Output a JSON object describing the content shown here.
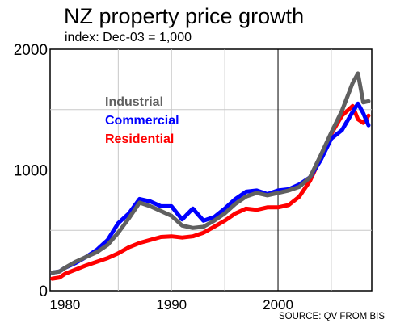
{
  "chart_data": {
    "type": "line",
    "title": "NZ property price growth",
    "subtitle": "index: Dec-03 = 1,000",
    "source": "SOURCE: QV FROM BIS",
    "xlabel": "",
    "ylabel": "",
    "xlim": [
      1978.6,
      2008.8
    ],
    "ylim": [
      0,
      2000
    ],
    "x_ticks": [
      1980,
      1990,
      2000
    ],
    "x_tick_labels": [
      "1980",
      "1990",
      "2000"
    ],
    "y_ticks": [
      0,
      1000,
      2000
    ],
    "y_tick_labels": [
      "0",
      "1000",
      "2000"
    ],
    "grid": true,
    "legend_position": "upper-left (inside plot)",
    "series": [
      {
        "name": "Residential",
        "color": "#ff0000",
        "x": [
          1978.8,
          1979.5,
          1980,
          1981,
          1982,
          1983,
          1984,
          1985,
          1986,
          1987,
          1988,
          1989,
          1990,
          1991,
          1992,
          1993,
          1994,
          1995,
          1996,
          1997,
          1998,
          1999,
          2000,
          2001,
          2002,
          2003,
          2004,
          2005,
          2006,
          2007,
          2007.5,
          2008,
          2008.5
        ],
        "y": [
          100,
          110,
          140,
          175,
          210,
          240,
          270,
          310,
          360,
          395,
          420,
          445,
          450,
          440,
          450,
          480,
          530,
          580,
          640,
          680,
          670,
          690,
          690,
          710,
          780,
          910,
          1100,
          1300,
          1450,
          1530,
          1420,
          1390,
          1450
        ]
      },
      {
        "name": "Commercial",
        "color": "#0000ff",
        "x": [
          1978.8,
          1979.5,
          1980,
          1981,
          1982,
          1983,
          1984,
          1985,
          1986,
          1987,
          1988,
          1989,
          1990,
          1991,
          1992,
          1993,
          1994,
          1995,
          1996,
          1997,
          1998,
          1999,
          2000,
          2001,
          2002,
          2003,
          2004,
          2005,
          2006,
          2007,
          2007.5,
          2008,
          2008.5
        ],
        "y": [
          150,
          160,
          190,
          230,
          280,
          340,
          420,
          560,
          640,
          760,
          740,
          700,
          700,
          590,
          680,
          580,
          610,
          680,
          760,
          820,
          830,
          800,
          830,
          840,
          880,
          940,
          1080,
          1260,
          1330,
          1480,
          1550,
          1470,
          1370
        ]
      },
      {
        "name": "Industrial",
        "color": "#606060",
        "x": [
          1978.8,
          1979.5,
          1980,
          1981,
          1982,
          1983,
          1984,
          1985,
          1986,
          1987,
          1988,
          1989,
          1990,
          1991,
          1992,
          1993,
          1994,
          1995,
          1996,
          1997,
          1998,
          1999,
          2000,
          2001,
          2002,
          2003,
          2004,
          2005,
          2006,
          2007,
          2007.5,
          2008,
          2008.5
        ],
        "y": [
          150,
          160,
          190,
          240,
          280,
          320,
          380,
          480,
          600,
          730,
          700,
          660,
          620,
          540,
          520,
          530,
          580,
          640,
          720,
          780,
          810,
          790,
          810,
          830,
          860,
          940,
          1120,
          1310,
          1490,
          1720,
          1800,
          1560,
          1570
        ]
      }
    ]
  }
}
